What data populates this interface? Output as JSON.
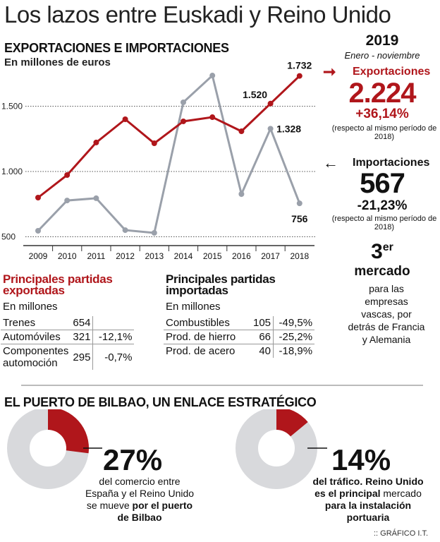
{
  "title": "Los lazos entre Euskadi y Reino Unido",
  "chart_section": {
    "heading": "EXPORTACIONES E IMPORTACIONES",
    "subheading": "En millones de euros"
  },
  "chart_data": {
    "type": "line",
    "x": [
      "2009",
      "2010",
      "2011",
      "2012",
      "2013",
      "2014",
      "2015",
      "2016",
      "2017",
      "2018"
    ],
    "series": [
      {
        "name": "Exportaciones",
        "color": "#b0161b",
        "values": [
          800,
          973,
          1222,
          1400,
          1216,
          1384,
          1416,
          1308,
          1520,
          1732
        ]
      },
      {
        "name": "Importaciones",
        "color": "#9aa0aa",
        "values": [
          546,
          778,
          795,
          551,
          530,
          1530,
          1735,
          827,
          1328,
          756
        ]
      }
    ],
    "yticks": [
      "500",
      "1.000",
      "1.500"
    ],
    "ytick_values": [
      500,
      1000,
      1500
    ],
    "ylim": [
      450,
      1800
    ],
    "grid": true,
    "annotations": [
      {
        "series": 0,
        "index": 8,
        "text": "1.520"
      },
      {
        "series": 0,
        "index": 9,
        "text": "1.732"
      },
      {
        "series": 1,
        "index": 8,
        "text": "1.328"
      },
      {
        "series": 1,
        "index": 9,
        "text": "756"
      }
    ]
  },
  "summary": {
    "year": "2019",
    "period": "Enero - noviembre",
    "exports": {
      "label": "Exportaciones",
      "value": "2.224",
      "change": "+36,14%",
      "note": "(respecto al mismo período de 2018)"
    },
    "imports": {
      "label": "Importaciones",
      "value": "567",
      "change": "-21,23%",
      "note": "(respecto al mismo período de 2018)"
    },
    "rank": {
      "num": "3",
      "sup": "er",
      "label": "mercado",
      "text": "para las empresas vascas, por detrás de Francia y Alemania"
    }
  },
  "exports_table": {
    "title": "Principales partidas exportadas",
    "unit": "En millones",
    "rows": [
      {
        "name": "Trenes",
        "value": "654",
        "change": ""
      },
      {
        "name": "Automóviles",
        "value": "321",
        "change": "-12,1%"
      },
      {
        "name": "Componentes automoción",
        "value": "295",
        "change": "-0,7%"
      }
    ]
  },
  "imports_table": {
    "title": "Principales partidas importadas",
    "unit": "En millones",
    "rows": [
      {
        "name": "Combustibles",
        "value": "105",
        "change": "-49,5%"
      },
      {
        "name": "Prod. de hierro",
        "value": "66",
        "change": "-25,2%"
      },
      {
        "name": "Prod. de acero",
        "value": "40",
        "change": "-18,9%"
      }
    ]
  },
  "port": {
    "heading": "EL PUERTO DE BILBAO, UN ENLACE ESTRATÉGICO",
    "donut1": {
      "percent": 27,
      "label": "27%",
      "text_a": "del comercio entre España y el Reino Unido se mueve ",
      "text_b": "por el puerto de Bilbao"
    },
    "donut2": {
      "percent": 14,
      "label": "14%",
      "text_a": "del tráfico. Reino Unido es el principal ",
      "text_b": "mercado",
      "text_c": " para la instalación portuaria"
    }
  },
  "credit": ":: GRÁFICO I.T.",
  "colors": {
    "red": "#b0161b",
    "gray": "#9aa0aa",
    "donut_gray": "#d8d9dc"
  }
}
